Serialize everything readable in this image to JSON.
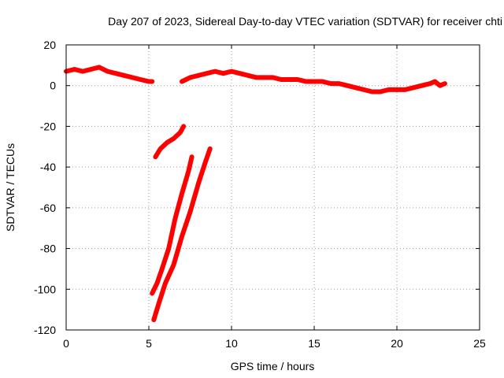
{
  "chart_data": {
    "type": "line",
    "title": "Day 207 of 2023, Sidereal Day-to-day VTEC variation (SDTVAR) for receiver chti",
    "xlabel": "GPS time / hours",
    "ylabel": "SDTVAR / TECUs",
    "xlim": [
      0,
      25
    ],
    "ylim": [
      -120,
      20
    ],
    "x_ticks": [
      0,
      5,
      10,
      15,
      20,
      25
    ],
    "y_ticks": [
      20,
      0,
      -20,
      -40,
      -60,
      -80,
      -100,
      -120
    ],
    "grid": true,
    "legend": "none",
    "color": "#ff0000",
    "series": [
      {
        "points": [
          [
            0,
            7
          ],
          [
            0.5,
            8
          ],
          [
            1,
            7
          ],
          [
            1.5,
            8
          ],
          [
            2,
            9
          ],
          [
            2.5,
            7
          ],
          [
            3,
            6
          ],
          [
            3.5,
            5
          ],
          [
            4,
            4
          ],
          [
            4.5,
            3
          ],
          [
            5,
            2
          ],
          [
            5.2,
            2
          ]
        ]
      },
      {
        "points": [
          [
            7,
            2
          ],
          [
            7.5,
            4
          ],
          [
            8,
            5
          ],
          [
            8.5,
            6
          ],
          [
            9,
            7
          ],
          [
            9.5,
            6
          ],
          [
            10,
            7
          ],
          [
            10.5,
            6
          ],
          [
            11,
            5
          ],
          [
            11.5,
            4
          ],
          [
            12,
            4
          ],
          [
            12.5,
            4
          ],
          [
            13,
            3
          ],
          [
            13.5,
            3
          ],
          [
            14,
            3
          ],
          [
            14.5,
            2
          ],
          [
            15,
            2
          ],
          [
            15.5,
            2
          ],
          [
            16,
            1
          ],
          [
            16.5,
            1
          ],
          [
            17,
            0
          ],
          [
            17.5,
            -1
          ],
          [
            18,
            -2
          ],
          [
            18.5,
            -3
          ],
          [
            19,
            -3
          ],
          [
            19.5,
            -2
          ],
          [
            20,
            -2
          ],
          [
            20.5,
            -2
          ],
          [
            21,
            -1
          ],
          [
            21.5,
            0
          ],
          [
            22,
            1
          ],
          [
            22.3,
            2
          ],
          [
            22.6,
            0
          ],
          [
            22.9,
            1
          ]
        ]
      },
      {
        "points": [
          [
            5.4,
            -35
          ],
          [
            5.7,
            -31
          ],
          [
            6.1,
            -28
          ],
          [
            6.5,
            -26
          ],
          [
            6.9,
            -23
          ],
          [
            7.1,
            -20
          ]
        ]
      },
      {
        "points": [
          [
            5.2,
            -102
          ],
          [
            5.5,
            -97
          ],
          [
            5.8,
            -90
          ],
          [
            6.2,
            -80
          ],
          [
            6.6,
            -65
          ],
          [
            7.0,
            -53
          ],
          [
            7.4,
            -42
          ],
          [
            7.6,
            -35
          ]
        ]
      },
      {
        "points": [
          [
            5.3,
            -115
          ],
          [
            5.6,
            -107
          ],
          [
            6.0,
            -97
          ],
          [
            6.5,
            -88
          ],
          [
            7.0,
            -74
          ],
          [
            7.5,
            -62
          ],
          [
            8.0,
            -48
          ],
          [
            8.4,
            -38
          ],
          [
            8.7,
            -31
          ]
        ]
      }
    ]
  }
}
